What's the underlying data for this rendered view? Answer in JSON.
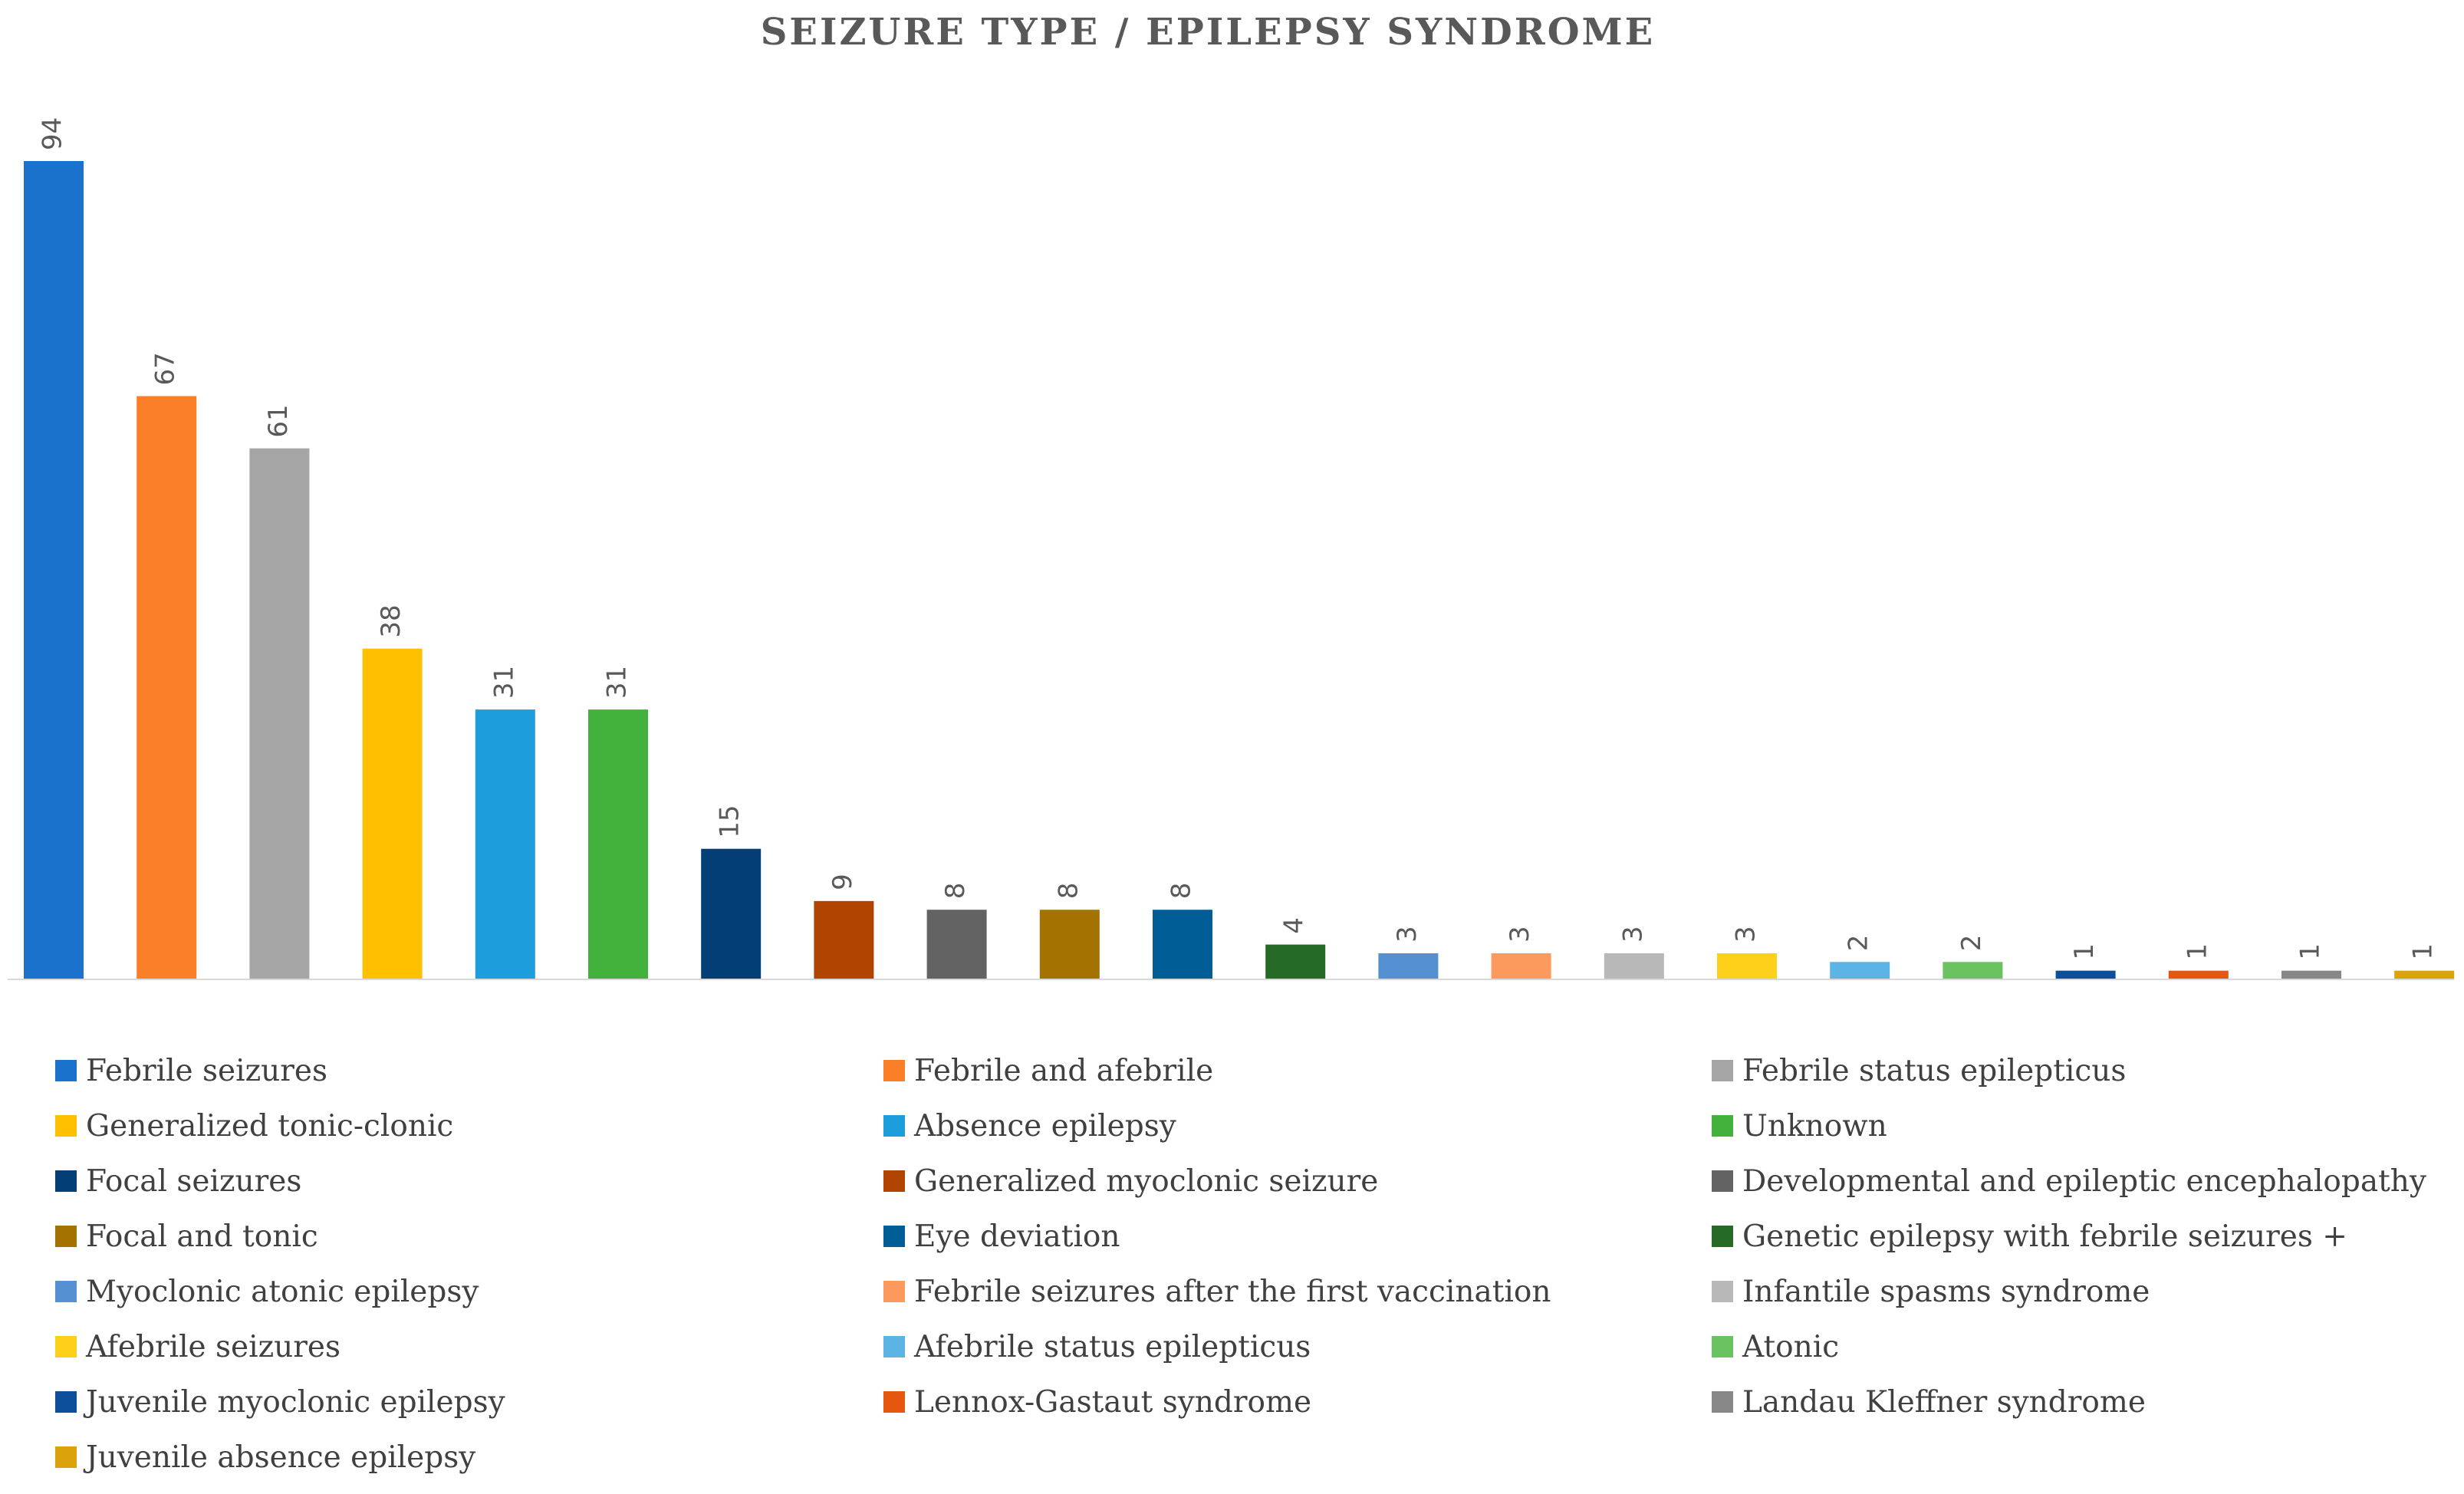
{
  "chart_data": {
    "type": "bar",
    "title": "SEIZURE TYPE / EPILEPSY SYNDROME",
    "xlabel": "",
    "ylabel": "",
    "ylim": [
      0,
      94
    ],
    "grid": false,
    "legend_position": "bottom",
    "categories": [
      "Febrile seizures",
      "Febrile and afebrile",
      "Febrile status epilepticus",
      "Generalized tonic-clonic",
      "Absence epilepsy",
      "Unknown",
      "Focal seizures",
      "Generalized myoclonic seizure",
      "Developmental and epileptic encephalopathy",
      "Focal and tonic",
      "Eye deviation",
      "Genetic epilepsy with febrile seizures +",
      "Myoclonic atonic epilepsy",
      "Febrile seizures after the first vaccination",
      "Infantile spasms syndrome",
      "Afebrile seizures",
      "Afebrile status epilepticus",
      "Atonic",
      "Juvenile myoclonic epilepsy",
      "Lennox-Gastaut syndrome",
      "Landau Kleffner syndrome",
      "Juvenile absence epilepsy"
    ],
    "values": [
      94,
      67,
      61,
      38,
      31,
      31,
      15,
      9,
      8,
      8,
      8,
      4,
      3,
      3,
      3,
      3,
      2,
      2,
      1,
      1,
      1,
      1
    ],
    "colors": [
      "#1a72cc",
      "#fb7e28",
      "#a5a5a5",
      "#ffc000",
      "#1d9ddb",
      "#42b23c",
      "#033f75",
      "#b04400",
      "#636363",
      "#a47200",
      "#005d96",
      "#256b26",
      "#5590d2",
      "#fc9a5e",
      "#b8b8b8",
      "#ffd01a",
      "#5cb4e4",
      "#6ac261",
      "#0d4f9a",
      "#e5570f",
      "#878787",
      "#dba20c"
    ]
  }
}
